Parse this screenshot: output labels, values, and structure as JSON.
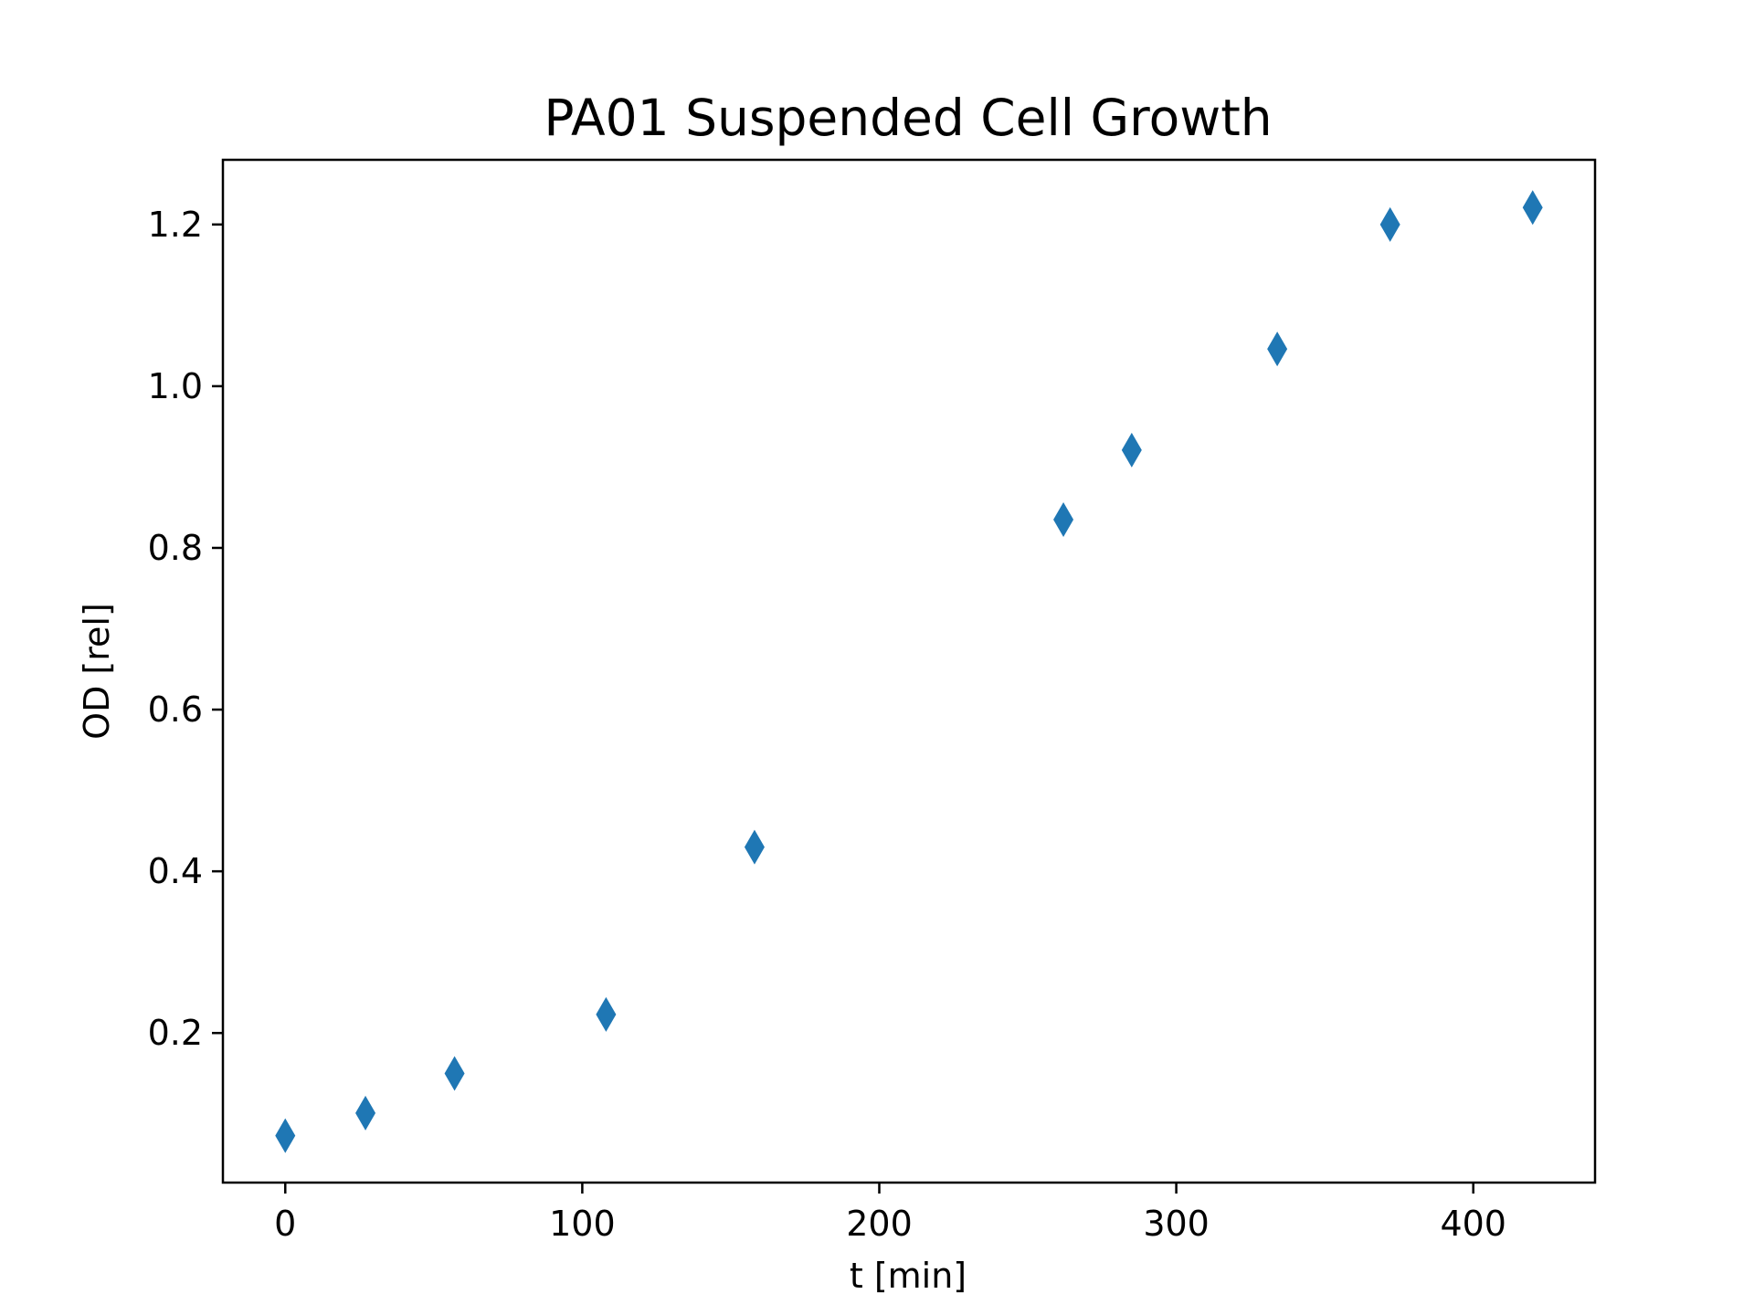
{
  "chart_data": {
    "type": "scatter",
    "title": "PA01 Suspended Cell Growth",
    "xlabel": "t [min]",
    "ylabel": "OD [rel]",
    "xlim": [
      -21,
      441
    ],
    "ylim": [
      0.015,
      1.28
    ],
    "xticks": [
      0,
      100,
      200,
      300,
      400
    ],
    "yticks": [
      0.2,
      0.4,
      0.6,
      0.8,
      1.0,
      1.2
    ],
    "xtick_labels": [
      "0",
      "100",
      "200",
      "300",
      "400"
    ],
    "ytick_labels": [
      "0.2",
      "0.4",
      "0.6",
      "0.8",
      "1.0",
      "1.2"
    ],
    "grid": false,
    "marker": "thin-diamond",
    "series": [
      {
        "color": "#1f77b4",
        "x": [
          0,
          27,
          57,
          108,
          158,
          262,
          285,
          334,
          372,
          420
        ],
        "y": [
          0.073,
          0.101,
          0.15,
          0.223,
          0.43,
          0.835,
          0.921,
          1.046,
          1.2,
          1.221
        ]
      }
    ]
  }
}
